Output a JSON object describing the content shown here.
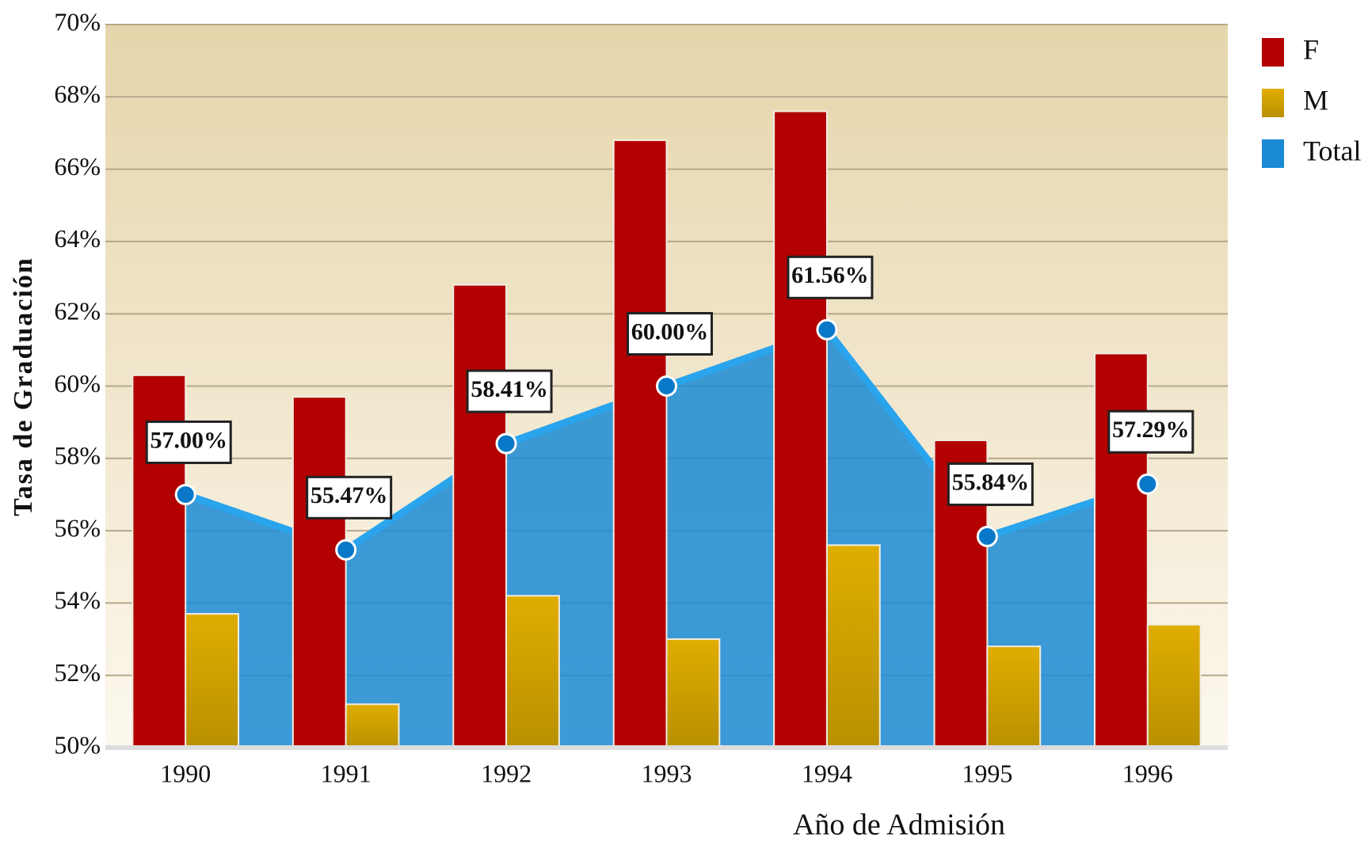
{
  "chart_data": {
    "type": "bar-area",
    "x_label": "Año de Admisión",
    "y_label": "Tasa de Graduación",
    "categories": [
      "1990",
      "1991",
      "1992",
      "1993",
      "1994",
      "1995",
      "1996"
    ],
    "series": [
      {
        "name": "F",
        "type": "bar",
        "color": "#b30000",
        "values": [
          60.3,
          59.7,
          62.8,
          66.8,
          67.6,
          58.5,
          60.9
        ]
      },
      {
        "name": "M",
        "type": "bar",
        "color": "#d4a300",
        "values": [
          53.7,
          51.2,
          54.2,
          53.0,
          55.6,
          52.8,
          53.4
        ]
      },
      {
        "name": "Total",
        "type": "area",
        "color": "#1a8ad4",
        "values": [
          57.0,
          55.47,
          58.41,
          60.0,
          61.56,
          55.84,
          57.29
        ],
        "value_labels": [
          "57.00%",
          "55.47%",
          "58.41%",
          "60.00%",
          "61.56%",
          "55.84%",
          "57.29%"
        ]
      }
    ],
    "ylim": [
      50,
      70
    ],
    "yticks": [
      {
        "value": 50,
        "label": "50%"
      },
      {
        "value": 52,
        "label": "52%"
      },
      {
        "value": 54,
        "label": "54%"
      },
      {
        "value": 56,
        "label": "56%"
      },
      {
        "value": 58,
        "label": "58%"
      },
      {
        "value": 60,
        "label": "60%"
      },
      {
        "value": 62,
        "label": "62%"
      },
      {
        "value": 64,
        "label": "64%"
      },
      {
        "value": 66,
        "label": "66%"
      },
      {
        "value": 68,
        "label": "68%"
      },
      {
        "value": 70,
        "label": "70%"
      }
    ],
    "grid": true,
    "legend": "top-right"
  }
}
